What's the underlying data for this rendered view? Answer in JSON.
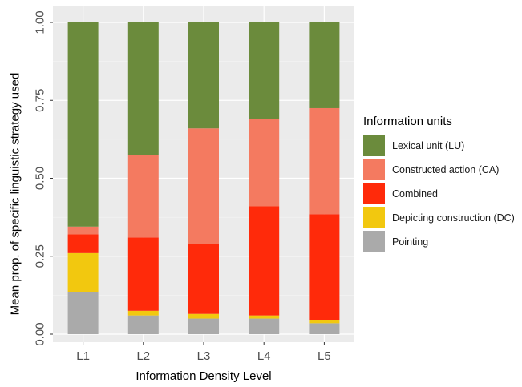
{
  "chart_data": {
    "type": "bar",
    "stacked": true,
    "xlabel": "Information Density Level",
    "ylabel": "Mean prop. of specific linguistic strategy used",
    "categories": [
      "L1",
      "L2",
      "L3",
      "L4",
      "L5"
    ],
    "yticks": [
      "0.00",
      "0.25",
      "0.50",
      "0.75",
      "1.00"
    ],
    "ylim": [
      0,
      1
    ],
    "grid": true,
    "legend_position": "right",
    "legend_title": "Information units",
    "series": [
      {
        "name": "Pointing",
        "color": "#aaaaaa",
        "values": [
          0.135,
          0.06,
          0.05,
          0.05,
          0.035
        ]
      },
      {
        "name": "Depicting construction (DC)",
        "color": "#f2c80f",
        "values": [
          0.125,
          0.015,
          0.015,
          0.01,
          0.01
        ]
      },
      {
        "name": "Combined",
        "color": "#ff2a0a",
        "values": [
          0.06,
          0.235,
          0.225,
          0.35,
          0.34
        ]
      },
      {
        "name": "Constructed action (CA)",
        "color": "#f47a60",
        "values": [
          0.025,
          0.265,
          0.37,
          0.28,
          0.34
        ]
      },
      {
        "name": "Lexical unit (LU)",
        "color": "#6b8b3c",
        "values": [
          0.655,
          0.425,
          0.34,
          0.31,
          0.275
        ]
      }
    ],
    "legend_order": [
      "Lexical unit (LU)",
      "Constructed action (CA)",
      "Combined",
      "Depicting construction (DC)",
      "Pointing"
    ]
  }
}
